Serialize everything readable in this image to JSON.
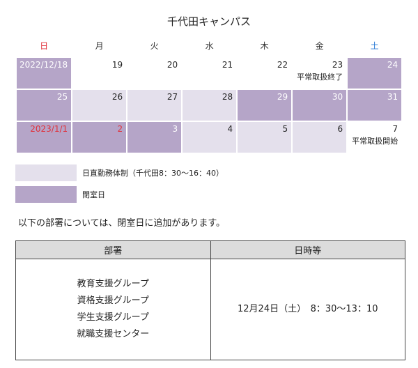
{
  "page_title": "千代田キャンパス",
  "weekdays": [
    {
      "label": "日",
      "color": "#e0303a"
    },
    {
      "label": "月",
      "color": "#333333"
    },
    {
      "label": "火",
      "color": "#333333"
    },
    {
      "label": "水",
      "color": "#333333"
    },
    {
      "label": "木",
      "color": "#333333"
    },
    {
      "label": "金",
      "color": "#333333"
    },
    {
      "label": "土",
      "color": "#2b7bd6"
    }
  ],
  "weeks": [
    [
      {
        "date": "2022/12/18",
        "type": "closed"
      },
      {
        "date": "19",
        "type": "white"
      },
      {
        "date": "20",
        "type": "white"
      },
      {
        "date": "21",
        "type": "white"
      },
      {
        "date": "22",
        "type": "white"
      },
      {
        "date": "23",
        "type": "white",
        "note": "平常取扱終了"
      },
      {
        "date": "24",
        "type": "closed"
      }
    ],
    [
      {
        "date": "25",
        "type": "closed"
      },
      {
        "date": "26",
        "type": "duty"
      },
      {
        "date": "27",
        "type": "duty"
      },
      {
        "date": "28",
        "type": "duty"
      },
      {
        "date": "29",
        "type": "closed"
      },
      {
        "date": "30",
        "type": "closed"
      },
      {
        "date": "31",
        "type": "closed"
      }
    ],
    [
      {
        "date": "2023/1/1",
        "type": "closed",
        "red": true
      },
      {
        "date": "2",
        "type": "closed",
        "red": true
      },
      {
        "date": "3",
        "type": "closed"
      },
      {
        "date": "4",
        "type": "duty"
      },
      {
        "date": "5",
        "type": "duty"
      },
      {
        "date": "6",
        "type": "duty"
      },
      {
        "date": "7",
        "type": "white",
        "note": "平常取扱開始"
      }
    ]
  ],
  "legend": {
    "duty_label": "日直勤務体制（千代田8：30〜16：40）",
    "closed_label": "閉室日"
  },
  "colors": {
    "closed": "#b5a5c8",
    "duty": "#e4e0ec",
    "holiday_red": "#e0303a",
    "saturday_blue": "#2b7bd6"
  },
  "intro_text": "以下の部署については、閉室日に追加があります。",
  "dept_table": {
    "header_dept": "部署",
    "header_datetime": "日時等",
    "departments": [
      "教育支援グループ",
      "資格支援グループ",
      "学生支援グループ",
      "就職支援センター"
    ],
    "datetime": "12月24日（土）　8：30〜13：10"
  }
}
